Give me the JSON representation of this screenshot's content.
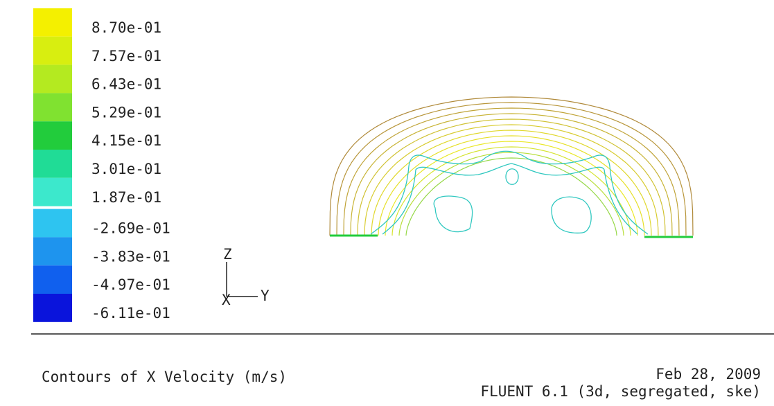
{
  "legend": [
    {
      "label": "8.70e-01",
      "color": "#f4f000"
    },
    {
      "label": "7.57e-01",
      "color": "#d8ee10"
    },
    {
      "label": "6.43e-01",
      "color": "#b4ea20"
    },
    {
      "label": "5.29e-01",
      "color": "#80e230"
    },
    {
      "label": "4.15e-01",
      "color": "#22cc3c"
    },
    {
      "label": "3.01e-01",
      "color": "#20dc96"
    },
    {
      "label": "1.87e-01",
      "color": "#3ce8cc"
    },
    {
      "label": "-2.69e-01",
      "color": "#2ec4f0"
    },
    {
      "label": "-3.83e-01",
      "color": "#1e94ee"
    },
    {
      "label": "-4.97e-01",
      "color": "#1060ee"
    },
    {
      "label": "-6.11e-01",
      "color": "#0a14dc"
    }
  ],
  "axes": {
    "z": "Z",
    "x": "X",
    "y": "Y"
  },
  "caption": "Contours of X Velocity (m/s)",
  "date": "Feb 28, 2009",
  "software": "FLUENT 6.1 (3d, segregated, ske)"
}
